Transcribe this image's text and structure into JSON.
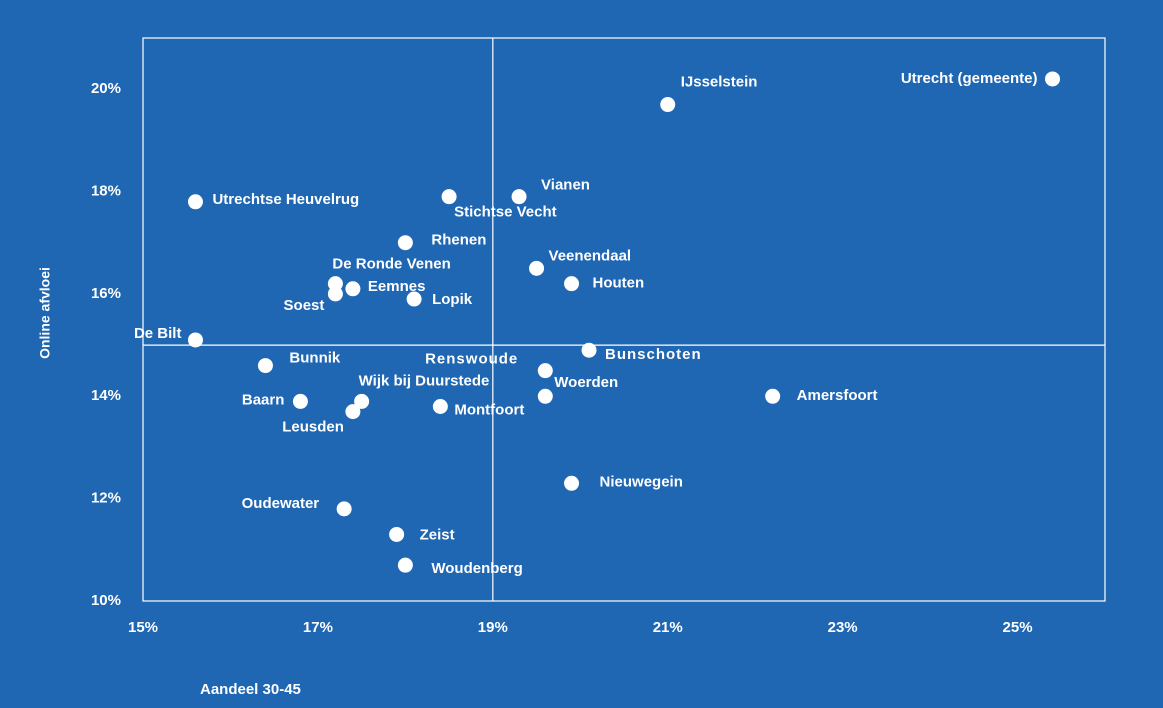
{
  "chart_data": {
    "type": "scatter",
    "x_label": "Aandeel 30-45",
    "y_label": "Online afvloei",
    "xlim": [
      15,
      26
    ],
    "ylim": [
      10,
      21
    ],
    "xticks": [
      {
        "value": 15,
        "label": "15%"
      },
      {
        "value": 17,
        "label": "17%"
      },
      {
        "value": 19,
        "label": "19%"
      },
      {
        "value": 21,
        "label": "21%"
      },
      {
        "value": 23,
        "label": "23%"
      },
      {
        "value": 25,
        "label": "25%"
      }
    ],
    "yticks": [
      {
        "value": 10,
        "label": "10%"
      },
      {
        "value": 12,
        "label": "12%"
      },
      {
        "value": 14,
        "label": "14%"
      },
      {
        "value": 16,
        "label": "16%"
      },
      {
        "value": 18,
        "label": "18%"
      },
      {
        "value": 20,
        "label": "20%"
      }
    ],
    "reference_lines": {
      "x": 19,
      "y": 15
    },
    "color": "#ffffff",
    "background": "#1f66b3",
    "names": [
      "IJsselstein",
      "Utrecht (gemeente)",
      "Vianen",
      "Stichtse Vecht",
      "Utrechtse Heuvelrug",
      "Rhenen",
      "Veenendaal",
      "Houten",
      "De Ronde Venen",
      "Eemnes",
      "Soest",
      "Lopik",
      "De Bilt",
      "Bunnik",
      "Bunschoten",
      "Renswoude",
      "Woerden",
      "Amersfoort",
      "Baarn",
      "Wijk bij Duurstede",
      "Leusden",
      "Montfoort",
      "Nieuwegein",
      "Oudewater",
      "Zeist",
      "Woudenberg"
    ],
    "x": [
      21.0,
      25.4,
      19.3,
      18.5,
      15.6,
      18.0,
      19.5,
      19.9,
      17.2,
      17.4,
      17.2,
      18.1,
      15.6,
      16.4,
      20.1,
      19.6,
      19.6,
      22.2,
      16.8,
      17.5,
      17.4,
      18.4,
      19.9,
      17.3,
      17.9,
      18.0
    ],
    "y": [
      19.7,
      20.2,
      17.9,
      17.9,
      17.8,
      17.0,
      16.5,
      16.2,
      16.2,
      16.1,
      16.0,
      15.9,
      15.1,
      14.6,
      14.9,
      14.5,
      14.0,
      14.0,
      13.9,
      13.9,
      13.7,
      13.8,
      12.3,
      11.8,
      11.3,
      10.7
    ]
  }
}
